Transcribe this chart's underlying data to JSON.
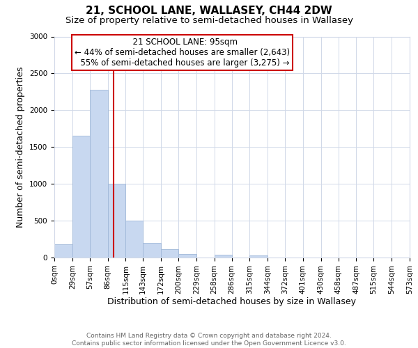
{
  "title": "21, SCHOOL LANE, WALLASEY, CH44 2DW",
  "subtitle": "Size of property relative to semi-detached houses in Wallasey",
  "xlabel": "Distribution of semi-detached houses by size in Wallasey",
  "ylabel": "Number of semi-detached properties",
  "footer_lines": [
    "Contains HM Land Registry data © Crown copyright and database right 2024.",
    "Contains public sector information licensed under the Open Government Licence v3.0."
  ],
  "bin_edges": [
    0,
    29,
    57,
    86,
    115,
    143,
    172,
    200,
    229,
    258,
    286,
    315,
    344,
    372,
    401,
    430,
    458,
    487,
    515,
    544,
    573
  ],
  "bin_counts": [
    175,
    1650,
    2280,
    1005,
    500,
    200,
    110,
    50,
    0,
    40,
    0,
    30,
    0,
    0,
    0,
    0,
    0,
    0,
    0,
    0
  ],
  "bar_color": "#c8d8f0",
  "bar_edge_color": "#a0b8d8",
  "property_line_x": 95,
  "property_label": "21 SCHOOL LANE: 95sqm",
  "pct_smaller": 44,
  "pct_larger": 55,
  "n_smaller": 2643,
  "n_larger": 3275,
  "vline_color": "#cc0000",
  "annotation_box_edge_color": "#cc0000",
  "ylim": [
    0,
    3000
  ],
  "yticks": [
    0,
    500,
    1000,
    1500,
    2000,
    2500,
    3000
  ],
  "xlim": [
    0,
    573
  ],
  "background_color": "#ffffff",
  "grid_color": "#d0d8e8",
  "title_fontsize": 11,
  "subtitle_fontsize": 9.5,
  "axis_label_fontsize": 9,
  "tick_label_fontsize": 7.5,
  "annotation_fontsize": 8.5,
  "footer_fontsize": 6.5
}
